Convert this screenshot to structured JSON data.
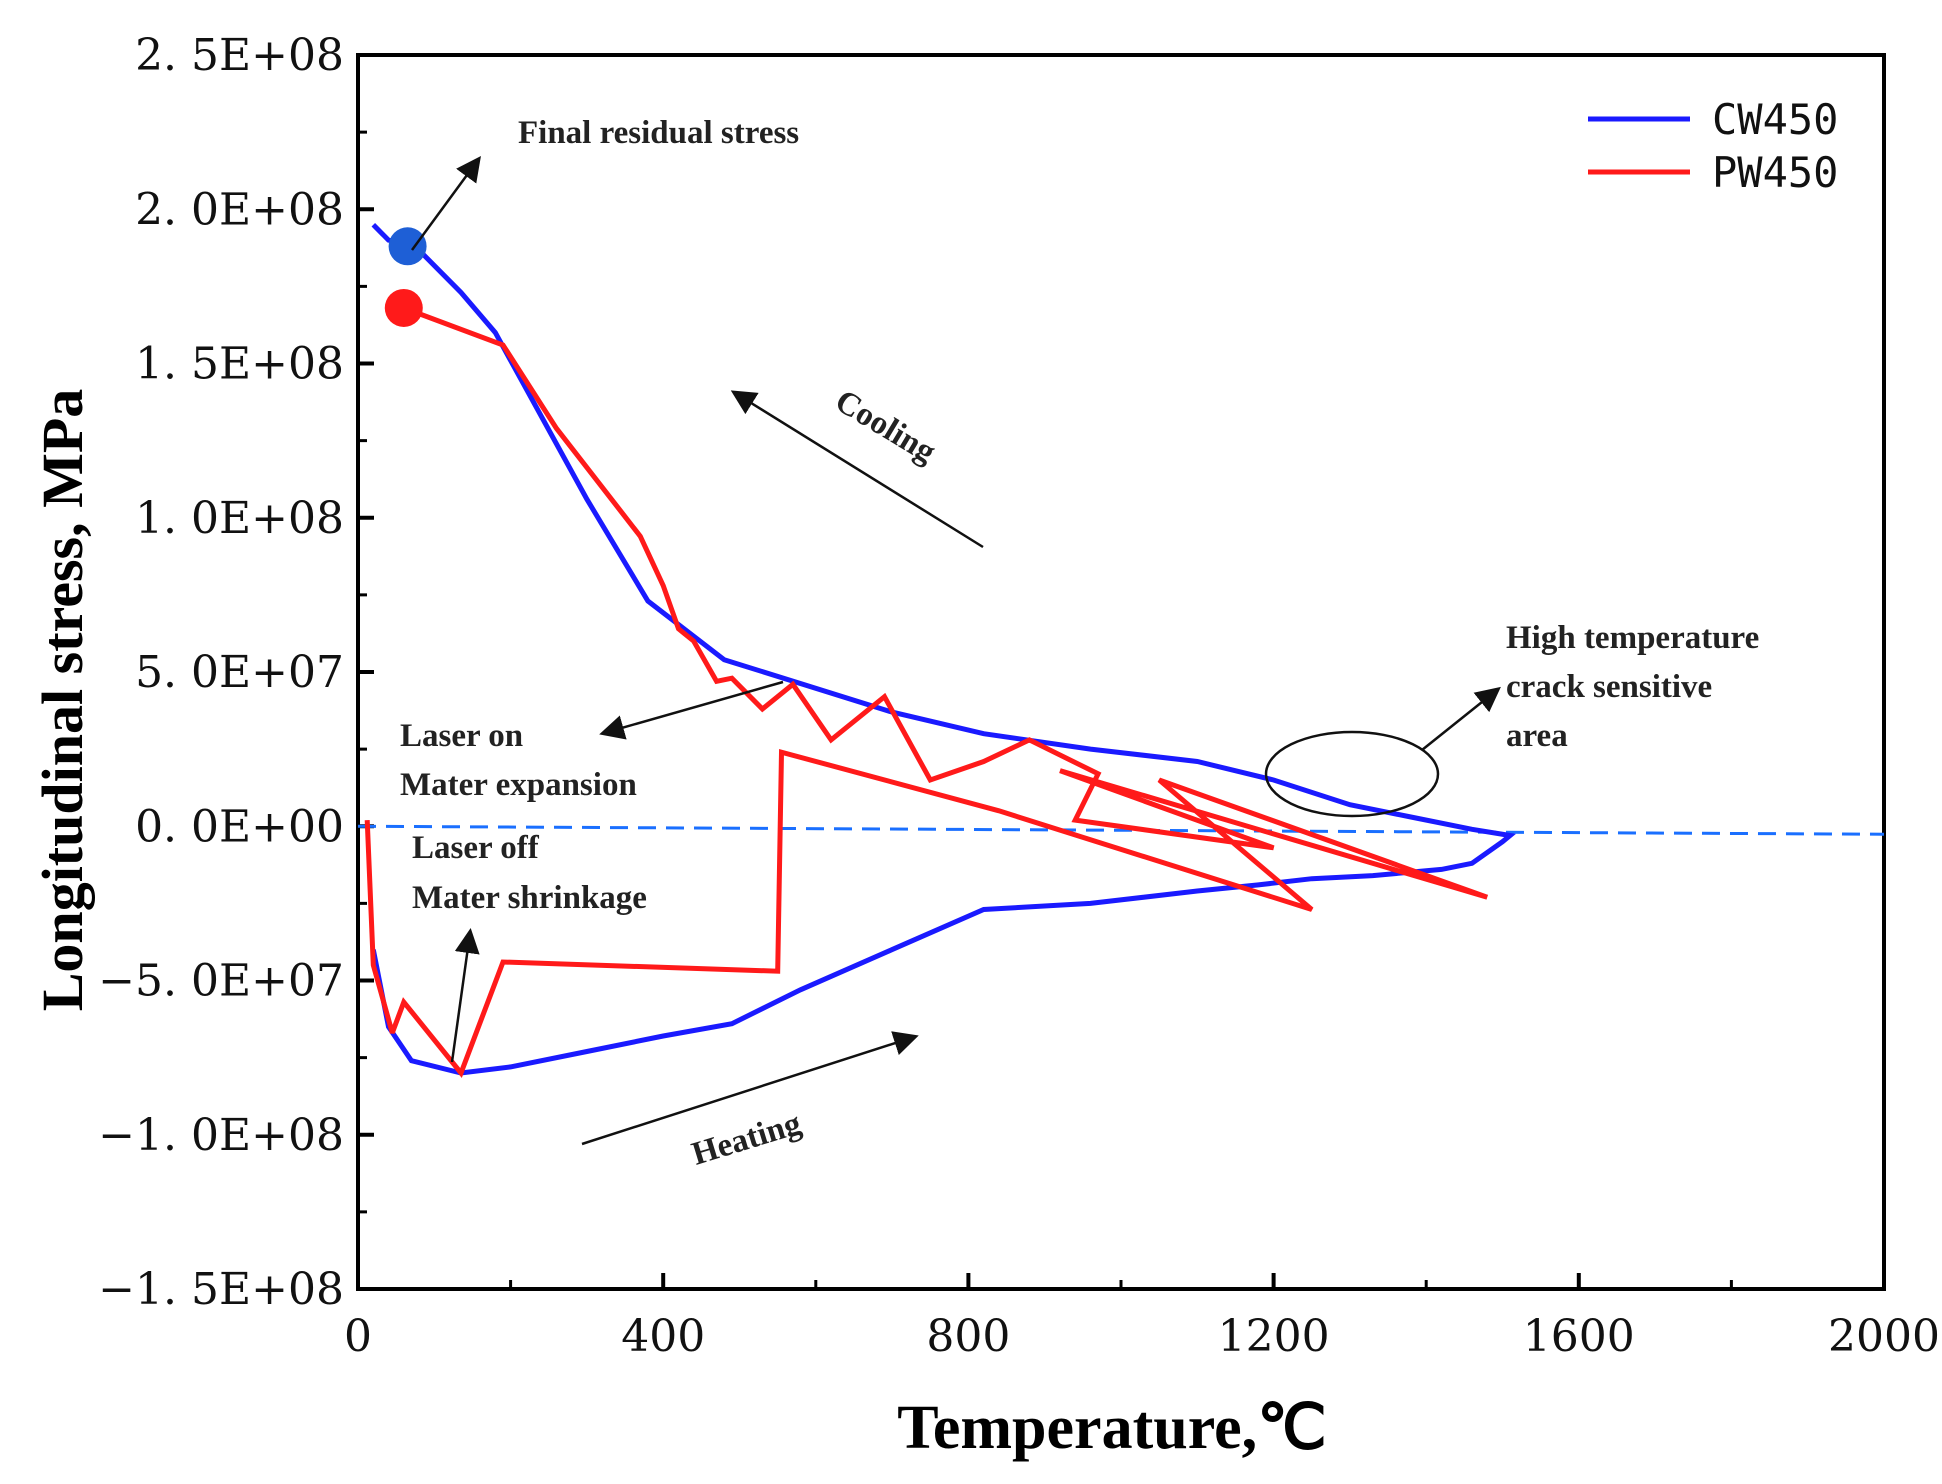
{
  "chart_data": {
    "type": "line",
    "xlabel": "Temperature,℃",
    "ylabel": "Longitudinal  stress, MPa",
    "xlim": [
      0,
      2000
    ],
    "ylim": [
      -150000000,
      250000000
    ],
    "x_ticks": [
      0,
      400,
      800,
      1200,
      1600,
      2000
    ],
    "x_tick_labels": [
      "0",
      "400",
      "800",
      "1200",
      "1600",
      "2000"
    ],
    "y_ticks": [
      250000000,
      200000000,
      150000000,
      100000000,
      50000000,
      0,
      -50000000,
      -100000000,
      -150000000
    ],
    "y_tick_labels": [
      "2. 5E+08",
      "2. 0E+08",
      "1. 5E+08",
      "1. 0E+08",
      "5. 0E+07",
      "0. 0E+00",
      "−5. 0E+07",
      "−1. 0E+08",
      "−1. 5E+08"
    ],
    "legend_position": "top-right",
    "series": [
      {
        "name": "CW450",
        "color": "#1a1aff",
        "x": [
          20,
          40,
          70,
          135,
          200,
          300,
          400,
          490,
          580,
          700,
          820,
          960,
          1100,
          1180,
          1250,
          1330,
          1420,
          1460,
          1500,
          1510,
          1460,
          1380,
          1300,
          1200,
          1100,
          960,
          820,
          700,
          480,
          380,
          300,
          180,
          135,
          75,
          40,
          20
        ],
        "y": [
          -40000000,
          -65000000,
          -76000000,
          -80000000,
          -78000000,
          -73000000,
          -68000000,
          -64000000,
          -53000000,
          -40000000,
          -27000000,
          -25000000,
          -21000000,
          -19000000,
          -17000000,
          -16000000,
          -14000000,
          -12000000,
          -5000000,
          -3000000,
          -1000000,
          3000000,
          7000000,
          15000000,
          21000000,
          25000000,
          30000000,
          37000000,
          54000000,
          73000000,
          106000000,
          160000000,
          173000000,
          188000000,
          190000000,
          195000000
        ]
      },
      {
        "name": "PW450",
        "color": "#ff1a1a",
        "x": [
          12,
          20,
          45,
          60,
          135,
          190,
          550,
          555,
          840,
          1250,
          1050,
          1480,
          920,
          1200,
          940,
          970,
          880,
          820,
          750,
          690,
          620,
          570,
          530,
          490,
          470,
          440,
          420,
          400,
          370,
          260,
          190,
          60
        ],
        "y": [
          2000000,
          -45000000,
          -67000000,
          -57000000,
          -80000000,
          -44000000,
          -47000000,
          24000000,
          5000000,
          -27000000,
          15000000,
          -23000000,
          18000000,
          -7000000,
          2000000,
          17000000,
          28000000,
          21000000,
          15000000,
          42000000,
          28000000,
          46000000,
          38000000,
          48000000,
          47000000,
          60000000,
          64000000,
          78000000,
          94000000,
          129000000,
          156000000,
          168000000
        ]
      }
    ],
    "dashed_zero_line": {
      "color": "#1a6fff",
      "y": 0
    },
    "markers": [
      {
        "series": "CW450",
        "x": 65,
        "y": 188000000,
        "color": "#1e5fd6"
      },
      {
        "series": "PW450",
        "x": 60,
        "y": 168000000,
        "color": "#ff1a1a"
      }
    ],
    "annotations": [
      {
        "id": "final",
        "text": "Final residual stress"
      },
      {
        "id": "cooling",
        "text": "Cooling"
      },
      {
        "id": "laser_on_1",
        "text": "Laser on"
      },
      {
        "id": "laser_on_2",
        "text": "Mater expansion"
      },
      {
        "id": "laser_off_1",
        "text": "Laser off"
      },
      {
        "id": "laser_off_2",
        "text": "Mater shrinkage"
      },
      {
        "id": "heating",
        "text": "Heating"
      },
      {
        "id": "high_temp_1",
        "text": "High temperature"
      },
      {
        "id": "high_temp_2",
        "text": "crack sensitive"
      },
      {
        "id": "high_temp_3",
        "text": "area"
      }
    ]
  }
}
